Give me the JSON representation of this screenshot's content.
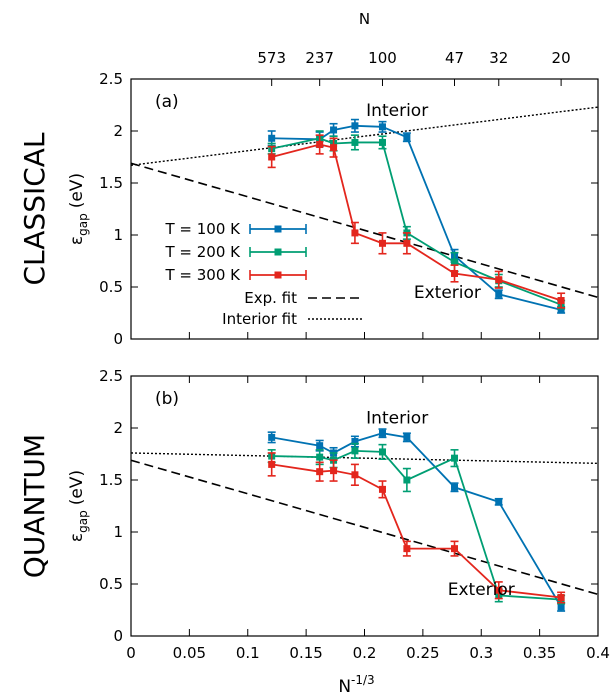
{
  "chart_data": [
    {
      "type": "line",
      "panel_label": "(a)",
      "side_label": "CLASSICAL",
      "ylabel_main": "ε",
      "ylabel_sub": "gap",
      "ylabel_unit": "(eV)",
      "top_xlabel": "N",
      "top_ticks": [
        {
          "label": "573",
          "x": 0.1205
        },
        {
          "label": "237",
          "x": 0.1616
        },
        {
          "label": "100",
          "x": 0.2154
        },
        {
          "label": "47",
          "x": 0.2771
        },
        {
          "label": "32",
          "x": 0.315
        },
        {
          "label": "20",
          "x": 0.3684
        }
      ],
      "xlim": [
        0,
        0.4
      ],
      "ylim": [
        0,
        2.5
      ],
      "yticks": [
        "0",
        "0.5",
        "1",
        "1.5",
        "2",
        "2.5"
      ],
      "xticks": [
        0,
        0.05,
        0.1,
        0.15,
        0.2,
        0.25,
        0.3,
        0.35,
        0.4
      ],
      "annotations": [
        {
          "text": "Interior",
          "x": 0.228,
          "y": 2.2
        },
        {
          "text": "Exterior",
          "x": 0.271,
          "y": 0.45
        }
      ],
      "series": [
        {
          "name": "T = 100 K",
          "color": "#0072b2",
          "x": [
            0.1205,
            0.1616,
            0.1735,
            0.1918,
            0.2154,
            0.2363,
            0.2771,
            0.315,
            0.3684
          ],
          "y": [
            1.93,
            1.92,
            2.01,
            2.05,
            2.04,
            1.94,
            0.8,
            0.43,
            0.28
          ],
          "err": [
            0.07,
            0.07,
            0.06,
            0.06,
            0.05,
            0.04,
            0.06,
            0.04,
            0.03
          ]
        },
        {
          "name": "T = 200 K",
          "color": "#009e73",
          "x": [
            0.1205,
            0.1616,
            0.1735,
            0.1918,
            0.2154,
            0.2363,
            0.2771,
            0.315,
            0.3684
          ],
          "y": [
            1.83,
            1.93,
            1.88,
            1.89,
            1.89,
            1.02,
            0.74,
            0.56,
            0.33
          ],
          "err": [
            0.05,
            0.07,
            0.07,
            0.07,
            0.06,
            0.06,
            0.09,
            0.06,
            0.04
          ]
        },
        {
          "name": "T = 300 K",
          "color": "#e3261d",
          "x": [
            0.1205,
            0.1616,
            0.1735,
            0.1918,
            0.2154,
            0.2363,
            0.2771,
            0.315,
            0.3684
          ],
          "y": [
            1.75,
            1.87,
            1.84,
            1.02,
            0.92,
            0.92,
            0.63,
            0.57,
            0.37
          ],
          "err": [
            0.1,
            0.09,
            0.09,
            0.1,
            0.1,
            0.1,
            0.08,
            0.08,
            0.07
          ]
        }
      ],
      "fits": [
        {
          "name": "Exp. fit",
          "style": "dashed",
          "x": [
            0,
            0.4
          ],
          "y": [
            1.69,
            0.4
          ]
        },
        {
          "name": "Interior fit",
          "style": "dotted",
          "x": [
            0,
            0.4
          ],
          "y": [
            1.67,
            2.23
          ]
        }
      ],
      "legend_position": "center-left"
    },
    {
      "type": "line",
      "panel_label": "(b)",
      "side_label": "QUANTUM",
      "ylabel_main": "ε",
      "ylabel_sub": "gap",
      "ylabel_unit": "(eV)",
      "xlabel_main": "N",
      "xlabel_sup": "-1/3",
      "xlim": [
        0,
        0.4
      ],
      "ylim": [
        0,
        2.5
      ],
      "yticks": [
        "0",
        "0.5",
        "1",
        "1.5",
        "2",
        "2.5"
      ],
      "xticks": [
        "0",
        "0.05",
        "0.1",
        "0.15",
        "0.2",
        "0.25",
        "0.3",
        "0.35",
        "0.4"
      ],
      "annotations": [
        {
          "text": "Interior",
          "x": 0.228,
          "y": 2.1
        },
        {
          "text": "Exterior",
          "x": 0.3,
          "y": 0.45
        }
      ],
      "series": [
        {
          "name": "T = 100 K",
          "color": "#0072b2",
          "x": [
            0.1205,
            0.1616,
            0.1735,
            0.1918,
            0.2154,
            0.2363,
            0.2771,
            0.315,
            0.3684
          ],
          "y": [
            1.91,
            1.83,
            1.76,
            1.87,
            1.95,
            1.91,
            1.43,
            1.29,
            0.28
          ],
          "err": [
            0.05,
            0.05,
            0.05,
            0.05,
            0.04,
            0.04,
            0.04,
            0.03,
            0.04
          ]
        },
        {
          "name": "T = 200 K",
          "color": "#009e73",
          "x": [
            0.1205,
            0.1616,
            0.1735,
            0.1918,
            0.2154,
            0.2363,
            0.2771,
            0.315,
            0.3684
          ],
          "y": [
            1.73,
            1.72,
            1.69,
            1.78,
            1.77,
            1.5,
            1.71,
            0.39,
            0.35
          ],
          "err": [
            0.06,
            0.07,
            0.07,
            0.07,
            0.07,
            0.11,
            0.08,
            0.06,
            0.04
          ]
        },
        {
          "name": "T = 300 K",
          "color": "#e3261d",
          "x": [
            0.1205,
            0.1616,
            0.1735,
            0.1918,
            0.2154,
            0.2363,
            0.2771,
            0.315,
            0.3684
          ],
          "y": [
            1.65,
            1.58,
            1.59,
            1.55,
            1.41,
            0.84,
            0.84,
            0.44,
            0.37
          ],
          "err": [
            0.11,
            0.09,
            0.1,
            0.1,
            0.08,
            0.07,
            0.07,
            0.08,
            0.05
          ]
        }
      ],
      "fits": [
        {
          "name": "Exp. fit",
          "style": "dashed",
          "x": [
            0,
            0.4
          ],
          "y": [
            1.69,
            0.4
          ]
        },
        {
          "name": "Interior fit",
          "style": "dotted",
          "x": [
            0,
            0.4
          ],
          "y": [
            1.76,
            1.66
          ]
        }
      ]
    }
  ]
}
